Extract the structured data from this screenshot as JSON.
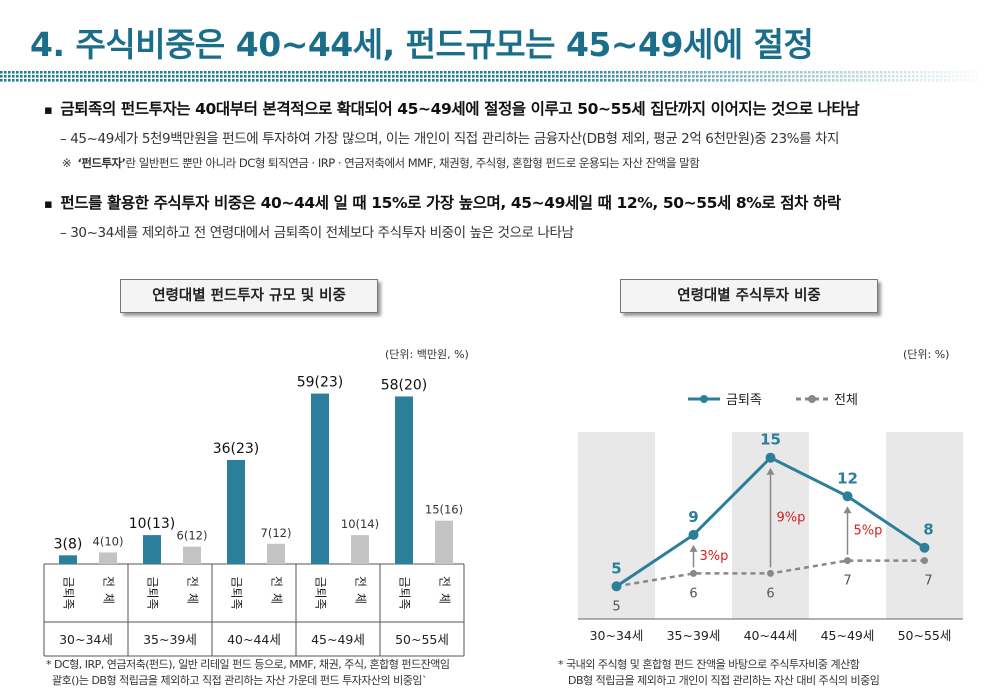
{
  "header": {
    "title": "4. 주식비중은 40~44세, 펀드규모는 45~49세에 절정"
  },
  "colors": {
    "accent": "#1a6e8a",
    "series_main": "#2b7f9a",
    "series_total": "#c3c3c3",
    "highlight": "#e8e8e8",
    "delta": "#d62020"
  },
  "body": {
    "bullet1": "금퇴족의 펀드투자는 40대부터 본격적으로 확대되어 45~49세에 절정을 이루고 50~55세 집단까지 이어지는 것으로 나타남",
    "sub1": "– 45~49세가 5천9백만원을 펀드에 투자하여 가장 많으며, 이는 개인이 직접 관리하는 금융자산(DB형 제외, 평균 2억 6천만원)중 23%를 차지",
    "note_mark": "※",
    "note_term": "‘펀드투자’",
    "note_rest": "란 일반펀드 뿐만 아니라 DC형 퇴직연금 · IRP · 연금저축에서 MMF, 채권형, 주식형, 혼합형 펀드로 운용되는 자산 잔액을 말함",
    "bullet2": "펀드를 활용한 주식투자 비중은 40~44세 일 때 15%로 가장 높으며, 45~49세일 때 12%, 50~55세 8%로 점차 하락",
    "sub2": "– 30~34세를 제외하고 전 연령대에서 금퇴족이 전체보다 주식투자 비중이 높은 것으로 나타남"
  },
  "chart_data": [
    {
      "type": "bar",
      "title": "연령대별 펀드투자 규모 및 비중",
      "unit": "(단위: 백만원, %)",
      "categories": [
        "30~34세",
        "35~39세",
        "40~44세",
        "45~49세",
        "50~55세"
      ],
      "series_labels": [
        "금퇴족",
        "전체"
      ],
      "series": [
        {
          "name": "금퇴족",
          "values": [
            3,
            10,
            36,
            59,
            58
          ],
          "shares": [
            8,
            13,
            23,
            23,
            20
          ],
          "labels": [
            "3(8)",
            "10(13)",
            "36(23)",
            "59(23)",
            "58(20)"
          ]
        },
        {
          "name": "전체",
          "values": [
            4,
            6,
            7,
            10,
            15
          ],
          "shares": [
            10,
            12,
            12,
            14,
            16
          ],
          "labels": [
            "4(10)",
            "6(12)",
            "7(12)",
            "10(14)",
            "15(16)"
          ]
        }
      ],
      "ylim": [
        0,
        63
      ],
      "footnote": [
        "* DC형, IRP, 연금저축(펀드), 일반 리테일 펀드 등으로, MMF, 채권, 주식, 혼합형 펀드잔액임",
        "괄호()는 DB형 적립금을 제외하고 직접 관리하는 자산 가운데 펀드 투자자산의 비중임`"
      ]
    },
    {
      "type": "line",
      "title": "연령대별 주식투자 비중",
      "unit": "(단위: %)",
      "categories": [
        "30~34세",
        "35~39세",
        "40~44세",
        "45~49세",
        "50~55세"
      ],
      "series": [
        {
          "name": "금퇴족",
          "values": [
            5,
            9,
            15,
            12,
            8
          ]
        },
        {
          "name": "전체",
          "values": [
            5,
            6,
            6,
            7,
            7
          ]
        }
      ],
      "ylim": [
        3,
        17
      ],
      "annotations": [
        {
          "category": "35~39세",
          "text": "3%p"
        },
        {
          "category": "40~44세",
          "text": "9%p"
        },
        {
          "category": "45~49세",
          "text": "5%p"
        }
      ],
      "shaded_categories": [
        "30~34세",
        "40~44세",
        "50~55세"
      ],
      "footnote": [
        "* 국내외 주식형 및 혼합형 펀드 잔액을 바탕으로 주식투자비중 계산함",
        "DB형 적립금을 제외하고 개인이 직접 관리하는 자산 대비 주식의 비중임"
      ]
    }
  ]
}
